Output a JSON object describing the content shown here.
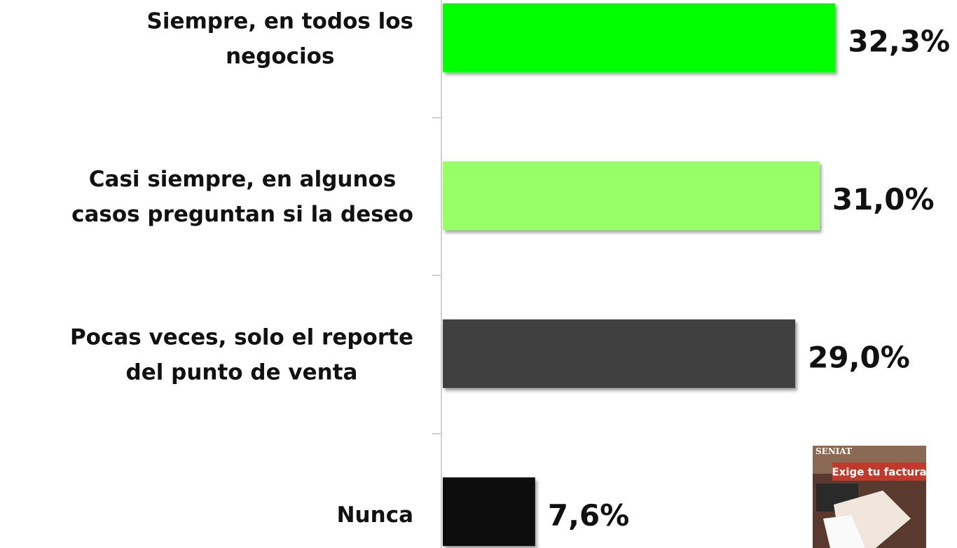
{
  "chart_data": {
    "type": "bar",
    "orientation": "horizontal",
    "categories": [
      [
        "Siempre, en todos los",
        "negocios"
      ],
      [
        "Casi siempre, en algunos",
        "casos preguntan si la deseo"
      ],
      [
        "Pocas veces, solo el reporte",
        "del punto de venta"
      ],
      [
        "Nunca"
      ]
    ],
    "values": [
      32.3,
      31.0,
      29.0,
      7.6
    ],
    "value_labels": [
      "32,3%",
      "31,0%",
      "29,0%",
      "7,6%"
    ],
    "colors": [
      "#00ff00",
      "#99ff66",
      "#404040",
      "#111111"
    ],
    "inset": {
      "brand": "SENIAT",
      "caption": "Exige tu factura"
    }
  }
}
